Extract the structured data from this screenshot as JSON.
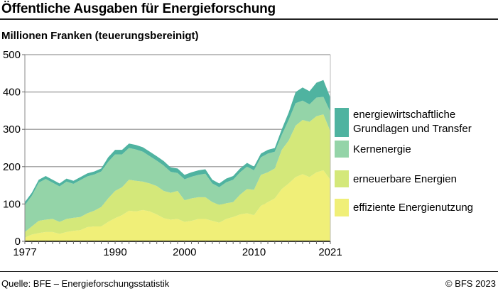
{
  "title": "Öffentliche Ausgaben für Energieforschung",
  "footer": {
    "source": "Quelle: BFE – Energieforschungsstatistik",
    "copyright": "© BFS 2023"
  },
  "chart_data": {
    "type": "area",
    "stacked": true,
    "title": "Öffentliche Ausgaben für Energieforschung",
    "ylabel": "Millionen Franken (teuerungsbereinigt)",
    "xlabel": "",
    "xlim": [
      1977,
      2021
    ],
    "ylim": [
      0,
      500
    ],
    "x_ticks": [
      1977,
      1990,
      2000,
      2010,
      2021
    ],
    "y_ticks": [
      0,
      100,
      200,
      300,
      400,
      500
    ],
    "grid": "horizontal",
    "legend_position": "right",
    "x": [
      1977,
      1978,
      1979,
      1980,
      1981,
      1982,
      1983,
      1984,
      1985,
      1986,
      1987,
      1988,
      1989,
      1990,
      1991,
      1992,
      1993,
      1994,
      1995,
      1996,
      1997,
      1998,
      1999,
      2000,
      2001,
      2002,
      2003,
      2004,
      2005,
      2006,
      2007,
      2008,
      2009,
      2010,
      2011,
      2012,
      2013,
      2014,
      2015,
      2016,
      2017,
      2018,
      2019,
      2020,
      2021
    ],
    "series": [
      {
        "name": "effiziente Energienutzung",
        "color": "#f0ef78",
        "values": [
          10,
          18,
          22,
          25,
          25,
          20,
          25,
          28,
          30,
          38,
          40,
          40,
          52,
          62,
          70,
          82,
          80,
          84,
          80,
          72,
          62,
          58,
          60,
          52,
          55,
          60,
          60,
          55,
          50,
          60,
          65,
          72,
          75,
          70,
          95,
          105,
          115,
          140,
          155,
          172,
          180,
          172,
          185,
          190,
          165
        ]
      },
      {
        "name": "erneuerbare Energien",
        "color": "#d4e87a",
        "values": [
          15,
          22,
          33,
          33,
          35,
          32,
          35,
          35,
          35,
          37,
          42,
          52,
          63,
          73,
          75,
          83,
          82,
          76,
          75,
          76,
          73,
          72,
          75,
          58,
          60,
          58,
          58,
          50,
          48,
          42,
          40,
          53,
          65,
          68,
          83,
          80,
          80,
          105,
          115,
          138,
          145,
          148,
          150,
          150,
          130
        ]
      },
      {
        "name": "Kernenergie",
        "color": "#94d4a8",
        "values": [
          72,
          82,
          102,
          109,
          97,
          95,
          100,
          91,
          99,
          99,
          97,
          95,
          98,
          98,
          88,
          85,
          84,
          80,
          73,
          68,
          68,
          56,
          48,
          56,
          58,
          60,
          63,
          50,
          47,
          56,
          60,
          60,
          60,
          52,
          47,
          50,
          45,
          40,
          55,
          60,
          52,
          47,
          50,
          47,
          52
        ]
      },
      {
        "name": "energiewirtschaftliche Grundlagen und Transfer",
        "color": "#4fb3a0",
        "values": [
          8,
          8,
          8,
          8,
          8,
          8,
          8,
          8,
          8,
          8,
          8,
          8,
          12,
          12,
          12,
          12,
          12,
          12,
          12,
          12,
          12,
          12,
          12,
          12,
          12,
          12,
          12,
          10,
          10,
          10,
          10,
          10,
          10,
          10,
          10,
          10,
          10,
          15,
          20,
          30,
          35,
          35,
          40,
          45,
          38
        ]
      }
    ],
    "legend": [
      {
        "lines": [
          "energiewirtschaftliche",
          "Grundlagen und Transfer"
        ],
        "color": "#4fb3a0"
      },
      {
        "lines": [
          "Kernenergie"
        ],
        "color": "#94d4a8"
      },
      {
        "lines": [
          "erneuerbare Energien"
        ],
        "color": "#d4e87a"
      },
      {
        "lines": [
          "effiziente Energienutzung"
        ],
        "color": "#f0ef78"
      }
    ]
  }
}
